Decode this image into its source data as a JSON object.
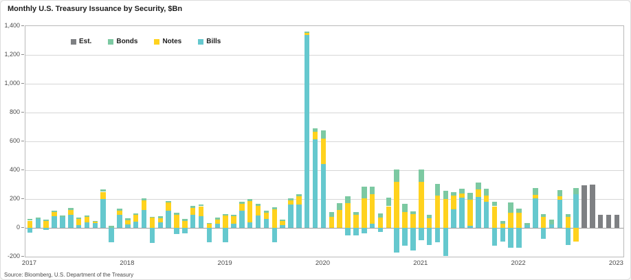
{
  "title": "Monthly U.S. Treasury Issuance by Security, $Bn",
  "source": "Source: Bloomberg, U.S. Department of the Treasury",
  "legend": [
    {
      "key": "est",
      "label": "Est.",
      "color": "#7e8083"
    },
    {
      "key": "bonds",
      "label": "Bonds",
      "color": "#7cc9a2"
    },
    {
      "key": "notes",
      "label": "Notes",
      "color": "#ffd21e"
    },
    {
      "key": "bills",
      "label": "Bills",
      "color": "#65c8ce"
    }
  ],
  "chart_data": {
    "type": "bar",
    "stacked": true,
    "title": "Monthly U.S. Treasury Issuance by Security, $Bn",
    "xlabel": "",
    "ylabel": "$Bn",
    "ylim": [
      -200,
      1400
    ],
    "y_step": 200,
    "y_tick_labels": [
      "1,400",
      "1,200",
      "1,000",
      "800",
      "600",
      "400",
      "200",
      "0",
      "-200"
    ],
    "grid": "horizontal",
    "legend_position": "top-left-inside",
    "stack_order": [
      "bills",
      "notes",
      "bonds",
      "est"
    ],
    "year_labels": [
      {
        "label": "2017",
        "month_index": 0
      },
      {
        "label": "2018",
        "month_index": 12
      },
      {
        "label": "2019",
        "month_index": 24
      },
      {
        "label": "2020",
        "month_index": 36
      },
      {
        "label": "2021",
        "month_index": 48
      },
      {
        "label": "2022",
        "month_index": 60
      },
      {
        "label": "2023",
        "month_index": 72
      }
    ],
    "months": [
      {
        "label": "Jan 2017",
        "bills": -35,
        "notes": 50,
        "bonds": 12,
        "est": 0
      },
      {
        "label": "Feb 2017",
        "bills": 60,
        "notes": 0,
        "bonds": 12,
        "est": 0
      },
      {
        "label": "Mar 2017",
        "bills": -15,
        "notes": 48,
        "bonds": 8,
        "est": 0
      },
      {
        "label": "Apr 2017",
        "bills": 83,
        "notes": 27,
        "bonds": 8,
        "est": 0
      },
      {
        "label": "May 2017",
        "bills": 75,
        "notes": 0,
        "bonds": 11,
        "est": 0
      },
      {
        "label": "Jun 2017",
        "bills": 90,
        "notes": 35,
        "bonds": 15,
        "est": 0
      },
      {
        "label": "Jul 2017",
        "bills": 20,
        "notes": 42,
        "bonds": 10,
        "est": 0
      },
      {
        "label": "Aug 2017",
        "bills": 40,
        "notes": 36,
        "bonds": 12,
        "est": 0
      },
      {
        "label": "Sep 2017",
        "bills": 35,
        "notes": 10,
        "bonds": 5,
        "est": 0
      },
      {
        "label": "Oct 2017",
        "bills": 200,
        "notes": 50,
        "bonds": 15,
        "est": 0
      },
      {
        "label": "Nov 2017",
        "bills": -100,
        "notes": 0,
        "bonds": 12,
        "est": 0
      },
      {
        "label": "Dec 2017",
        "bills": 90,
        "notes": 30,
        "bonds": 15,
        "est": 0
      },
      {
        "label": "Jan 2018",
        "bills": 25,
        "notes": 28,
        "bonds": 12,
        "est": 0
      },
      {
        "label": "Feb 2018",
        "bills": 43,
        "notes": 46,
        "bonds": 11,
        "est": 0
      },
      {
        "label": "Mar 2018",
        "bills": 125,
        "notes": 65,
        "bonds": 15,
        "est": 0
      },
      {
        "label": "Apr 2018",
        "bills": -105,
        "notes": 70,
        "bonds": 8,
        "est": 0
      },
      {
        "label": "May 2018",
        "bills": 38,
        "notes": 30,
        "bonds": 12,
        "est": 0
      },
      {
        "label": "Jun 2018",
        "bills": 120,
        "notes": 54,
        "bonds": 11,
        "est": 0
      },
      {
        "label": "Jul 2018",
        "bills": -45,
        "notes": 90,
        "bonds": 15,
        "est": 0
      },
      {
        "label": "Aug 2018",
        "bills": -40,
        "notes": 48,
        "bonds": 14,
        "est": 0
      },
      {
        "label": "Sep 2018",
        "bills": 90,
        "notes": 50,
        "bonds": 12,
        "est": 0
      },
      {
        "label": "Oct 2018",
        "bills": 80,
        "notes": 70,
        "bonds": 12,
        "est": 0
      },
      {
        "label": "Nov 2018",
        "bills": -100,
        "notes": 30,
        "bonds": 5,
        "est": 0
      },
      {
        "label": "Dec 2018",
        "bills": 28,
        "notes": 28,
        "bonds": 15,
        "est": 0
      },
      {
        "label": "Jan 2019",
        "bills": -100,
        "notes": 85,
        "bonds": 11,
        "est": 0
      },
      {
        "label": "Feb 2019",
        "bills": 30,
        "notes": 50,
        "bonds": 10,
        "est": 0
      },
      {
        "label": "Mar 2019",
        "bills": 120,
        "notes": 47,
        "bonds": 13,
        "est": 0
      },
      {
        "label": "Apr 2019",
        "bills": 38,
        "notes": 148,
        "bonds": 12,
        "est": 0
      },
      {
        "label": "May 2019",
        "bills": 85,
        "notes": 68,
        "bonds": 12,
        "est": 0
      },
      {
        "label": "Jun 2019",
        "bills": 60,
        "notes": 43,
        "bonds": 18,
        "est": 0
      },
      {
        "label": "Jul 2019",
        "bills": -100,
        "notes": 130,
        "bonds": 12,
        "est": 0
      },
      {
        "label": "Aug 2019",
        "bills": 18,
        "notes": 28,
        "bonds": 12,
        "est": 0
      },
      {
        "label": "Sep 2019",
        "bills": 160,
        "notes": 32,
        "bonds": 13,
        "est": 0
      },
      {
        "label": "Oct 2019",
        "bills": 160,
        "notes": 60,
        "bonds": 15,
        "est": 0
      },
      {
        "label": "Nov 2019",
        "bills": 1340,
        "notes": 12,
        "bonds": 12,
        "est": 0
      },
      {
        "label": "Dec 2019",
        "bills": 615,
        "notes": 52,
        "bonds": 24,
        "est": 0
      },
      {
        "label": "Jan 2020",
        "bills": 445,
        "notes": 175,
        "bonds": 58,
        "est": 0
      },
      {
        "label": "Feb 2020",
        "bills": 0,
        "notes": 78,
        "bonds": 32,
        "est": 0
      },
      {
        "label": "Mar 2020",
        "bills": 0,
        "notes": 123,
        "bonds": 50,
        "est": 0
      },
      {
        "label": "Apr 2020",
        "bills": -50,
        "notes": 170,
        "bonds": 50,
        "est": 0
      },
      {
        "label": "May 2020",
        "bills": -50,
        "notes": 91,
        "bonds": 19,
        "est": 0
      },
      {
        "label": "Jun 2020",
        "bills": -38,
        "notes": 205,
        "bonds": 83,
        "est": 0
      },
      {
        "label": "Jul 2020",
        "bills": 28,
        "notes": 205,
        "bonds": 55,
        "est": 0
      },
      {
        "label": "Aug 2020",
        "bills": -28,
        "notes": 73,
        "bonds": 25,
        "est": 0
      },
      {
        "label": "Sep 2020",
        "bills": 0,
        "notes": 150,
        "bonds": 58,
        "est": 0
      },
      {
        "label": "Oct 2020",
        "bills": -170,
        "notes": 320,
        "bonds": 85,
        "est": 0
      },
      {
        "label": "Nov 2020",
        "bills": -125,
        "notes": 110,
        "bonds": 55,
        "est": 0
      },
      {
        "label": "Dec 2020",
        "bills": -155,
        "notes": 95,
        "bonds": 20,
        "est": 0
      },
      {
        "label": "Jan 2021",
        "bills": -87,
        "notes": 320,
        "bonds": 84,
        "est": 0
      },
      {
        "label": "Feb 2021",
        "bills": -120,
        "notes": 65,
        "bonds": 25,
        "est": 0
      },
      {
        "label": "Mar 2021",
        "bills": -100,
        "notes": 225,
        "bonds": 82,
        "est": 0
      },
      {
        "label": "Apr 2021",
        "bills": -195,
        "notes": 200,
        "bonds": 58,
        "est": 0
      },
      {
        "label": "May 2021",
        "bills": 130,
        "notes": 95,
        "bonds": 25,
        "est": 0
      },
      {
        "label": "Jun 2021",
        "bills": 210,
        "notes": 30,
        "bonds": 30,
        "est": 0
      },
      {
        "label": "Jul 2021",
        "bills": 12,
        "notes": 185,
        "bonds": 46,
        "est": 0
      },
      {
        "label": "Aug 2021",
        "bills": 215,
        "notes": 50,
        "bonds": 50,
        "est": 0
      },
      {
        "label": "Sep 2021",
        "bills": 180,
        "notes": 45,
        "bonds": 45,
        "est": 0
      },
      {
        "label": "Oct 2021",
        "bills": -125,
        "notes": 150,
        "bonds": 30,
        "est": 0
      },
      {
        "label": "Nov 2021",
        "bills": -95,
        "notes": 30,
        "bonds": 20,
        "est": 0
      },
      {
        "label": "Dec 2021",
        "bills": -140,
        "notes": 105,
        "bonds": 72,
        "est": 0
      },
      {
        "label": "Jan 2022",
        "bills": -138,
        "notes": 105,
        "bonds": 30,
        "est": 0
      },
      {
        "label": "Feb 2022",
        "bills": 20,
        "notes": 0,
        "bonds": 15,
        "est": 0
      },
      {
        "label": "Mar 2022",
        "bills": 205,
        "notes": 23,
        "bonds": 49,
        "est": 0
      },
      {
        "label": "Apr 2022",
        "bills": -75,
        "notes": 75,
        "bonds": 20,
        "est": 0
      },
      {
        "label": "May 2022",
        "bills": 25,
        "notes": 0,
        "bonds": 30,
        "est": 0
      },
      {
        "label": "Jun 2022",
        "bills": 195,
        "notes": 25,
        "bonds": 40,
        "est": 0
      },
      {
        "label": "Jul 2022",
        "bills": -120,
        "notes": 75,
        "bonds": 20,
        "est": 0
      },
      {
        "label": "Aug 2022",
        "bills": 235,
        "notes": -95,
        "bonds": 42,
        "est": 0
      },
      {
        "label": "Sep 2022",
        "bills": 0,
        "notes": 0,
        "bonds": 0,
        "est": 297
      },
      {
        "label": "Oct 2022",
        "bills": 0,
        "notes": 0,
        "bonds": 0,
        "est": 300
      },
      {
        "label": "Nov 2022",
        "bills": 0,
        "notes": 0,
        "bonds": 0,
        "est": 89
      },
      {
        "label": "Dec 2022",
        "bills": 0,
        "notes": 0,
        "bonds": 0,
        "est": 90
      },
      {
        "label": "Jan 2023",
        "bills": 0,
        "notes": 0,
        "bonds": 0,
        "est": 90
      }
    ]
  }
}
